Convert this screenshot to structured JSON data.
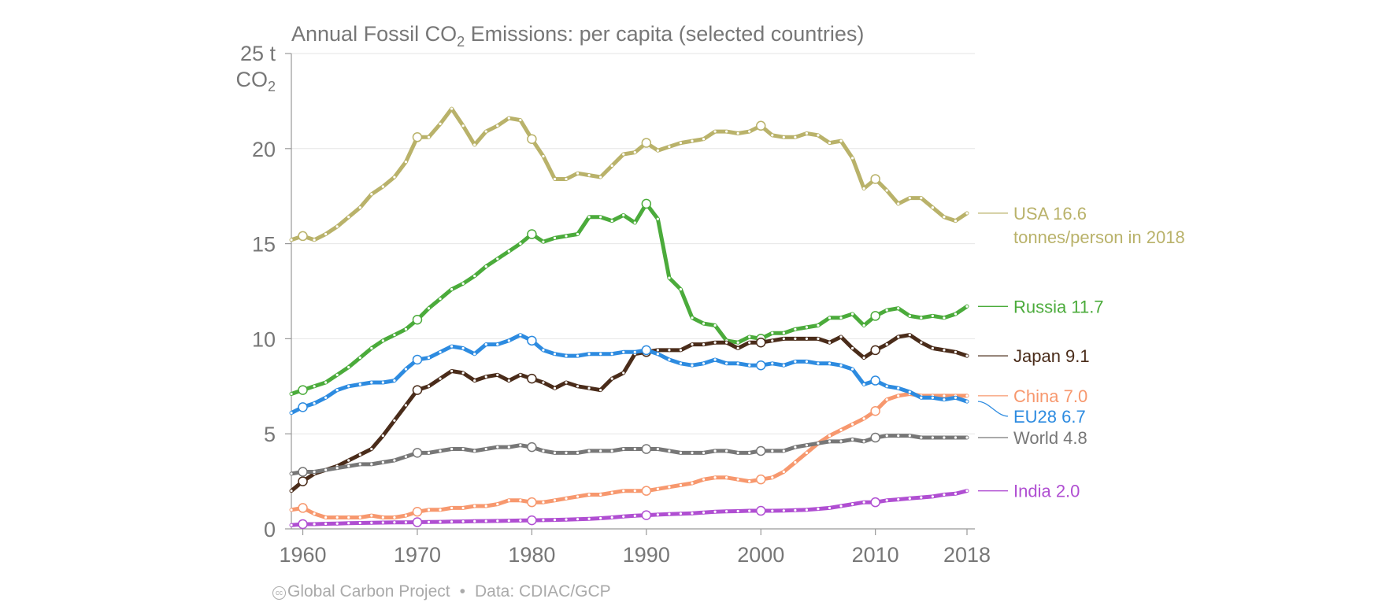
{
  "chart_data": {
    "type": "line",
    "title": {
      "main": "Annual Fossil CO",
      "sub": "2",
      "rest": " Emissions: per capita (selected countries)"
    },
    "ylabel": {
      "line1": "25 t",
      "line2": "CO",
      "line2_sub": "2"
    },
    "xlim": [
      1959,
      2018
    ],
    "ylim": [
      0,
      25
    ],
    "xticks": [
      1960,
      1970,
      1980,
      1990,
      2000,
      2010,
      2018
    ],
    "yticks": [
      0,
      5,
      10,
      15,
      20
    ],
    "grid": true,
    "marker_years": [
      1960,
      1970,
      1980,
      1990,
      2000,
      2010
    ],
    "series": [
      {
        "name": "USA",
        "value_label": "16.6",
        "extra_label": "tonnes/person in 2018",
        "color": "#b9b26a",
        "values": [
          15.2,
          15.4,
          15.2,
          15.5,
          15.9,
          16.4,
          16.9,
          17.6,
          18.0,
          18.5,
          19.3,
          20.6,
          20.6,
          21.3,
          22.1,
          21.2,
          20.2,
          20.9,
          21.2,
          21.6,
          21.5,
          20.5,
          19.6,
          18.4,
          18.4,
          18.7,
          18.6,
          18.5,
          19.1,
          19.7,
          19.8,
          20.3,
          19.9,
          20.1,
          20.3,
          20.4,
          20.5,
          20.9,
          20.9,
          20.8,
          20.9,
          21.2,
          20.7,
          20.6,
          20.6,
          20.8,
          20.7,
          20.3,
          20.4,
          19.5,
          17.9,
          18.4,
          17.8,
          17.1,
          17.4,
          17.4,
          16.9,
          16.4,
          16.2,
          16.6
        ]
      },
      {
        "name": "Russia",
        "value_label": "11.7",
        "color": "#4bab3b",
        "values": [
          7.1,
          7.3,
          7.5,
          7.7,
          8.1,
          8.5,
          9.0,
          9.5,
          9.9,
          10.2,
          10.5,
          11.0,
          11.6,
          12.1,
          12.6,
          12.9,
          13.3,
          13.8,
          14.2,
          14.6,
          15.0,
          15.5,
          15.1,
          15.3,
          15.4,
          15.5,
          16.4,
          16.4,
          16.2,
          16.5,
          16.1,
          17.1,
          16.3,
          13.2,
          12.6,
          11.1,
          10.8,
          10.7,
          9.9,
          9.8,
          10.1,
          10.0,
          10.3,
          10.3,
          10.5,
          10.6,
          10.7,
          11.1,
          11.1,
          11.3,
          10.7,
          11.2,
          11.5,
          11.6,
          11.2,
          11.1,
          11.2,
          11.1,
          11.3,
          11.7
        ]
      },
      {
        "name": "Japan",
        "value_label": "9.1",
        "color": "#4a2c1a",
        "values": [
          2.0,
          2.5,
          2.9,
          3.1,
          3.3,
          3.6,
          3.9,
          4.2,
          4.9,
          5.7,
          6.5,
          7.3,
          7.5,
          7.9,
          8.3,
          8.2,
          7.8,
          8.0,
          8.1,
          7.8,
          8.1,
          7.9,
          7.7,
          7.4,
          7.7,
          7.5,
          7.4,
          7.3,
          7.9,
          8.2,
          9.2,
          9.3,
          9.4,
          9.4,
          9.4,
          9.7,
          9.7,
          9.8,
          9.8,
          9.5,
          9.8,
          9.8,
          9.9,
          10.0,
          10.0,
          10.0,
          10.0,
          9.8,
          10.1,
          9.5,
          9.0,
          9.4,
          9.7,
          10.1,
          10.2,
          9.8,
          9.5,
          9.4,
          9.3,
          9.1
        ]
      },
      {
        "name": "China",
        "value_label": "7.0",
        "color": "#f7986e",
        "values": [
          1.0,
          1.1,
          0.8,
          0.6,
          0.6,
          0.6,
          0.6,
          0.7,
          0.6,
          0.6,
          0.7,
          0.9,
          1.0,
          1.0,
          1.1,
          1.1,
          1.2,
          1.2,
          1.3,
          1.5,
          1.5,
          1.4,
          1.4,
          1.5,
          1.6,
          1.7,
          1.8,
          1.8,
          1.9,
          2.0,
          2.0,
          2.0,
          2.1,
          2.2,
          2.3,
          2.4,
          2.6,
          2.7,
          2.7,
          2.6,
          2.5,
          2.6,
          2.7,
          3.0,
          3.5,
          4.0,
          4.5,
          4.9,
          5.2,
          5.5,
          5.8,
          6.2,
          6.8,
          7.0,
          7.1,
          7.0,
          7.0,
          7.0,
          7.0,
          7.0
        ]
      },
      {
        "name": "EU28",
        "value_label": "6.7",
        "color": "#2d8be0",
        "values": [
          6.1,
          6.4,
          6.6,
          6.9,
          7.3,
          7.5,
          7.6,
          7.7,
          7.7,
          7.8,
          8.4,
          8.9,
          9.0,
          9.3,
          9.6,
          9.5,
          9.2,
          9.7,
          9.7,
          9.9,
          10.2,
          9.9,
          9.4,
          9.2,
          9.1,
          9.1,
          9.2,
          9.2,
          9.2,
          9.3,
          9.3,
          9.4,
          9.2,
          8.9,
          8.7,
          8.6,
          8.7,
          8.9,
          8.7,
          8.7,
          8.6,
          8.6,
          8.7,
          8.6,
          8.8,
          8.8,
          8.7,
          8.7,
          8.6,
          8.4,
          7.6,
          7.8,
          7.5,
          7.4,
          7.2,
          6.9,
          6.9,
          6.8,
          6.9,
          6.7
        ]
      },
      {
        "name": "World",
        "value_label": "4.8",
        "color": "#777777",
        "values": [
          2.9,
          3.0,
          3.0,
          3.1,
          3.2,
          3.3,
          3.4,
          3.4,
          3.5,
          3.6,
          3.8,
          4.0,
          4.0,
          4.1,
          4.2,
          4.2,
          4.1,
          4.2,
          4.3,
          4.3,
          4.4,
          4.3,
          4.1,
          4.0,
          4.0,
          4.0,
          4.1,
          4.1,
          4.1,
          4.2,
          4.2,
          4.2,
          4.2,
          4.1,
          4.0,
          4.0,
          4.0,
          4.1,
          4.1,
          4.0,
          4.0,
          4.1,
          4.1,
          4.1,
          4.3,
          4.4,
          4.5,
          4.6,
          4.6,
          4.7,
          4.6,
          4.8,
          4.9,
          4.9,
          4.9,
          4.8,
          4.8,
          4.8,
          4.8,
          4.8
        ]
      },
      {
        "name": "India",
        "value_label": "2.0",
        "color": "#b04fd2",
        "values": [
          0.2,
          0.25,
          0.25,
          0.27,
          0.28,
          0.3,
          0.31,
          0.32,
          0.33,
          0.34,
          0.34,
          0.35,
          0.36,
          0.37,
          0.38,
          0.39,
          0.4,
          0.41,
          0.42,
          0.43,
          0.44,
          0.45,
          0.46,
          0.47,
          0.49,
          0.51,
          0.53,
          0.56,
          0.6,
          0.65,
          0.69,
          0.72,
          0.75,
          0.78,
          0.8,
          0.82,
          0.86,
          0.9,
          0.92,
          0.93,
          0.95,
          0.95,
          0.95,
          0.96,
          0.98,
          1.0,
          1.05,
          1.1,
          1.2,
          1.3,
          1.4,
          1.4,
          1.5,
          1.55,
          1.6,
          1.65,
          1.7,
          1.8,
          1.85,
          2.0
        ]
      }
    ]
  },
  "footer": {
    "cc_glyph": "cc",
    "attribution": "Global Carbon Project",
    "data_source": "Data: CDIAC/GCP"
  }
}
